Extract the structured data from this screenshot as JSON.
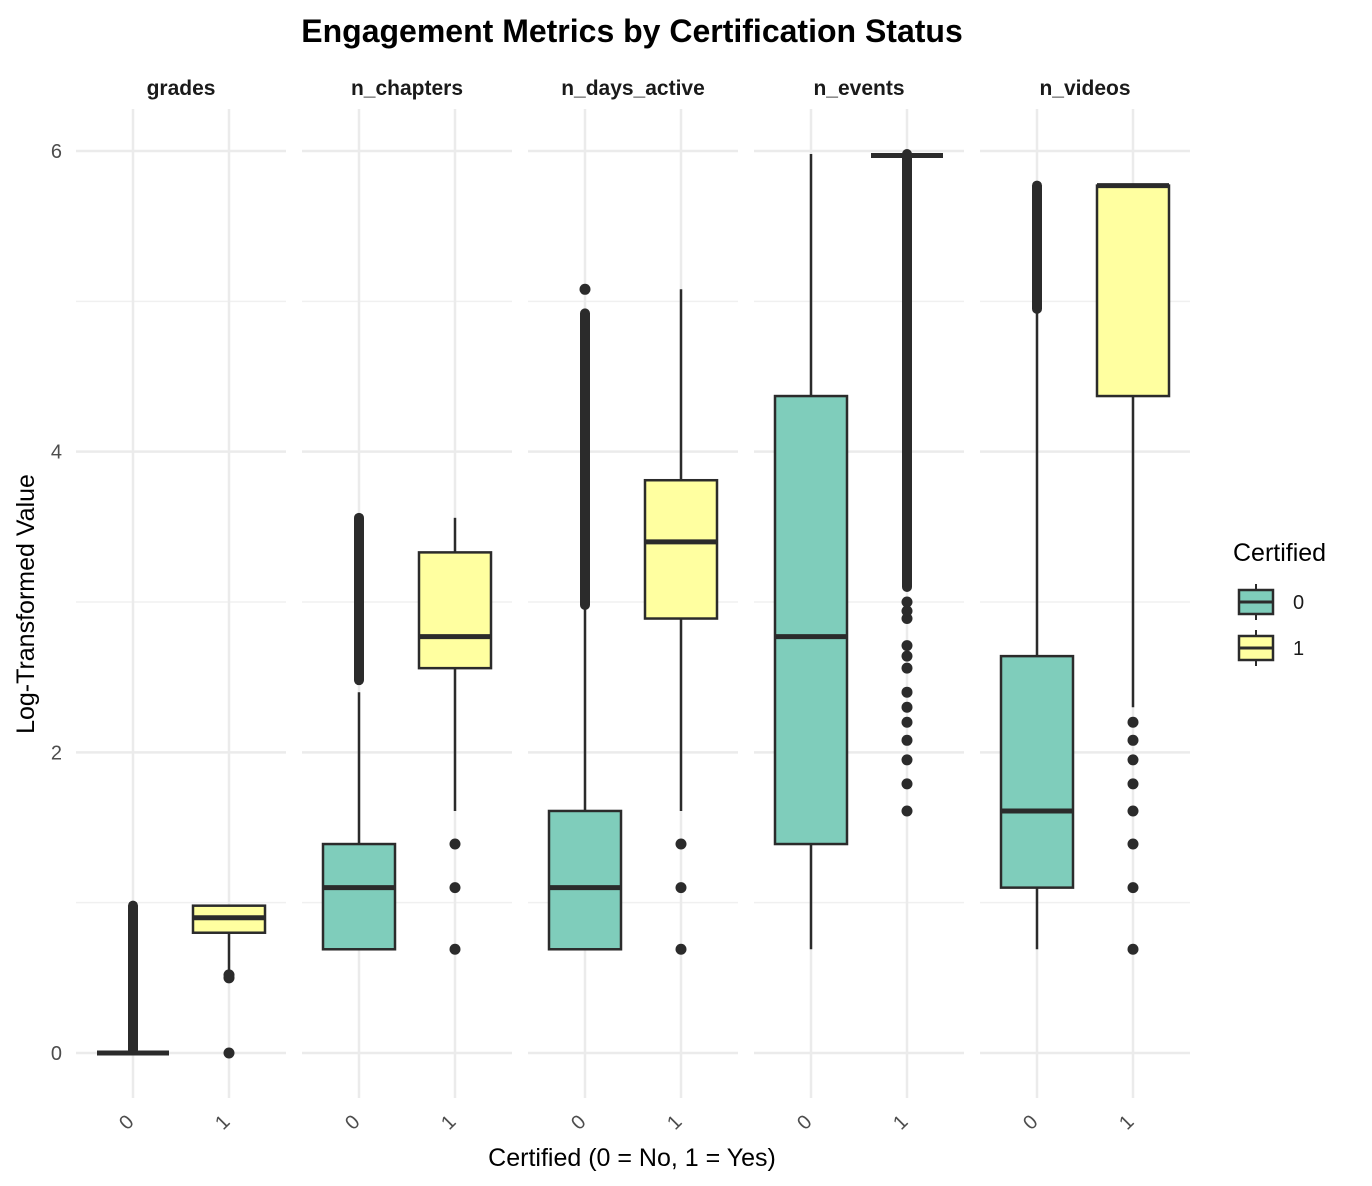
{
  "chart_data": {
    "type": "boxplot",
    "title": "Engagement Metrics by Certification Status",
    "xlabel": "Certified (0 = No, 1 = Yes)",
    "ylabel": "Log-Transformed Value",
    "ylim": [
      -0.3,
      6.25
    ],
    "y_ticks": [
      0,
      2,
      4,
      6
    ],
    "grid": true,
    "legend": {
      "title": "Certified",
      "position": "right",
      "entries": [
        {
          "label": "0",
          "color": "#7fcdbb"
        },
        {
          "label": "1",
          "color": "#ffffa0"
        }
      ]
    },
    "categories": [
      "0",
      "1"
    ],
    "panels": [
      {
        "name": "grades",
        "boxes": [
          {
            "category": "0",
            "color": "#7fcdbb",
            "q1": 0,
            "median": 0,
            "q3": 0,
            "whisker_low": 0,
            "whisker_high": 0,
            "outlier_range": [
              0.02,
              0.98
            ]
          },
          {
            "category": "1",
            "color": "#ffffa0",
            "q1": 0.8,
            "median": 0.9,
            "q3": 0.98,
            "whisker_low": 0.55,
            "whisker_high": 0.98,
            "outliers": [
              0,
              0.5,
              0.52
            ]
          }
        ]
      },
      {
        "name": "n_chapters",
        "boxes": [
          {
            "category": "0",
            "color": "#7fcdbb",
            "q1": 0.69,
            "median": 1.1,
            "q3": 1.39,
            "whisker_low": 0.69,
            "whisker_high": 2.4,
            "outlier_range": [
              2.48,
              3.56
            ]
          },
          {
            "category": "1",
            "color": "#ffffa0",
            "q1": 2.56,
            "median": 2.77,
            "q3": 3.33,
            "whisker_low": 1.61,
            "whisker_high": 3.56,
            "outliers": [
              0.69,
              1.1,
              1.39
            ]
          }
        ]
      },
      {
        "name": "n_days_active",
        "boxes": [
          {
            "category": "0",
            "color": "#7fcdbb",
            "q1": 0.69,
            "median": 1.1,
            "q3": 1.61,
            "whisker_low": 0.69,
            "whisker_high": 2.97,
            "outlier_range": [
              2.98,
              4.92
            ],
            "outliers": [
              5.08
            ]
          },
          {
            "category": "1",
            "color": "#ffffa0",
            "q1": 2.89,
            "median": 3.4,
            "q3": 3.81,
            "whisker_low": 1.61,
            "whisker_high": 5.08,
            "outliers": [
              0.69,
              1.1,
              1.39
            ]
          }
        ]
      },
      {
        "name": "n_events",
        "boxes": [
          {
            "category": "0",
            "color": "#7fcdbb",
            "q1": 1.39,
            "median": 2.77,
            "q3": 4.37,
            "whisker_low": 0.69,
            "whisker_high": 5.98
          },
          {
            "category": "1",
            "color": "#ffffa0",
            "q1": 5.97,
            "median": 5.97,
            "q3": 5.97,
            "whisker_low": 5.97,
            "whisker_high": 5.97,
            "outlier_range": [
              3.1,
              5.98
            ],
            "outliers": [
              1.61,
              1.79,
              1.95,
              2.08,
              2.2,
              2.3,
              2.4,
              2.56,
              2.64,
              2.71,
              2.89,
              2.94,
              3.0
            ]
          }
        ]
      },
      {
        "name": "n_videos",
        "boxes": [
          {
            "category": "0",
            "color": "#7fcdbb",
            "q1": 1.1,
            "median": 1.61,
            "q3": 2.64,
            "whisker_low": 0.69,
            "whisker_high": 4.94,
            "outlier_range": [
              4.95,
              5.77
            ]
          },
          {
            "category": "1",
            "color": "#ffffa0",
            "q1": 4.37,
            "median": 5.77,
            "q3": 5.77,
            "whisker_low": 2.3,
            "whisker_high": 5.77,
            "outliers": [
              0.69,
              1.1,
              1.39,
              1.61,
              1.79,
              1.95,
              2.08,
              2.2
            ]
          }
        ]
      }
    ]
  }
}
